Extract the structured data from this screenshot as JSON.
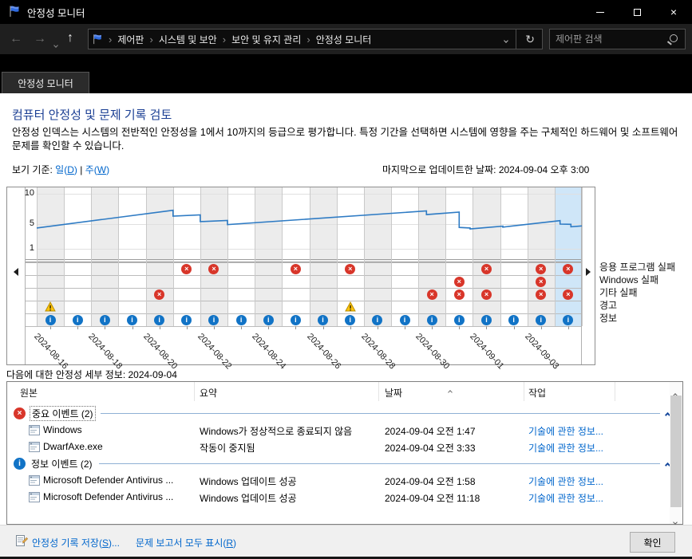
{
  "window": {
    "title": "안정성 모니터"
  },
  "nav": {
    "breadcrumb_items": [
      "제어판",
      "시스템 및 보안",
      "보안 및 유지 관리",
      "안정성 모니터"
    ],
    "search_placeholder": "제어판 검색"
  },
  "tab": {
    "label": "안정성 모니터"
  },
  "page": {
    "heading": "컴퓨터 안정성 및 문제 기록 검토",
    "description": "안정성 인덱스는 시스템의 전반적인 안정성을 1에서 10까지의 등급으로 평가합니다. 특정 기간을 선택하면 시스템에 영향을 주는 구체적인 하드웨어 및 소프트웨어 문제를 확인할 수 있습니다.",
    "view_by": {
      "prefix": "보기 기준: ",
      "day_pre": "일(",
      "day_key": "D",
      "day_post": ")",
      "divider": " | ",
      "week_pre": "주(",
      "week_key": "W",
      "week_post": ")"
    },
    "last_updated": "마지막으로 업데이트한 날짜: 2024-09-04 오후 3:00",
    "detail_label": "다음에 대한 안정성 세부 정보: 2024-09-04"
  },
  "chart_data": {
    "type": "line",
    "ylabel": "",
    "xlabel": "",
    "ylim": [
      1,
      10
    ],
    "y_ticks": [
      "10",
      "5",
      "1"
    ],
    "days": [
      "2024-08-16",
      "2024-08-17",
      "2024-08-18",
      "2024-08-19",
      "2024-08-20",
      "2024-08-21",
      "2024-08-22",
      "2024-08-23",
      "2024-08-24",
      "2024-08-25",
      "2024-08-26",
      "2024-08-27",
      "2024-08-28",
      "2024-08-29",
      "2024-08-30",
      "2024-08-31",
      "2024-09-01",
      "2024-09-02",
      "2024-09-03",
      "2024-09-04"
    ],
    "x_labels": [
      "2024-08-16",
      "2024-08-18",
      "2024-08-20",
      "2024-08-22",
      "2024-08-24",
      "2024-08-26",
      "2024-08-28",
      "2024-08-30",
      "2024-09-01",
      "2024-09-03"
    ],
    "selected_day_index": 19,
    "stability_index_line": [
      [
        0,
        4.4
      ],
      [
        5,
        7.3
      ],
      [
        5,
        6.35
      ],
      [
        6,
        6.55
      ],
      [
        6,
        5.45
      ],
      [
        7,
        5.65
      ],
      [
        7,
        4.95
      ],
      [
        14.3,
        7.2
      ],
      [
        14.3,
        6.6
      ],
      [
        15.5,
        7.0
      ],
      [
        15.5,
        4.5
      ],
      [
        15.9,
        4.4
      ],
      [
        15.9,
        4.25
      ],
      [
        17.1,
        4.7
      ],
      [
        17.1,
        4.55
      ],
      [
        19.2,
        5.6
      ],
      [
        19.2,
        5.05
      ],
      [
        19.6,
        5.0
      ],
      [
        19.6,
        4.6
      ],
      [
        20,
        4.75
      ]
    ],
    "rows": [
      {
        "label": "응용 프로그램 실패",
        "type": "error",
        "day_indexes": [
          5,
          6,
          9,
          11,
          16,
          18,
          19
        ]
      },
      {
        "label": "Windows 실패",
        "type": "error",
        "day_indexes": [
          15,
          18
        ]
      },
      {
        "label": "기타 실패",
        "type": "error",
        "day_indexes": [
          4,
          14,
          15,
          16,
          18,
          19
        ]
      },
      {
        "label": "경고",
        "type": "warning",
        "day_indexes": [
          0,
          11
        ]
      },
      {
        "label": "정보",
        "type": "info",
        "day_indexes": [
          0,
          1,
          2,
          3,
          4,
          5,
          6,
          7,
          8,
          9,
          10,
          11,
          12,
          13,
          14,
          15,
          16,
          17,
          18,
          19
        ]
      }
    ]
  },
  "table": {
    "headers": [
      "원본",
      "요약",
      "날짜",
      "작업"
    ],
    "sorted_column": "날짜",
    "groups": [
      {
        "icon": "error",
        "label": "중요 이벤트 (2)",
        "focused": true,
        "rows": [
          {
            "source": "Windows",
            "summary": "Windows가 정상적으로 종료되지 않음",
            "date": "2024-09-04 오전 1:47",
            "action": "기술에 관한 정보..."
          },
          {
            "source": "DwarfAxe.exe",
            "summary": "작동이 중지됨",
            "date": "2024-09-04 오전 3:33",
            "action": "기술에 관한 정보..."
          }
        ]
      },
      {
        "icon": "info",
        "label": "정보 이벤트 (2)",
        "focused": false,
        "rows": [
          {
            "source": "Microsoft Defender Antivirus ...",
            "summary": "Windows 업데이트 성공",
            "date": "2024-09-04 오전 1:58",
            "action": "기술에 관한 정보..."
          },
          {
            "source": "Microsoft Defender Antivirus ...",
            "summary": "Windows 업데이트 성공",
            "date": "2024-09-04 오전 11:18",
            "action": "기술에 관한 정보..."
          }
        ]
      }
    ]
  },
  "footer": {
    "save_pre": "안정성 기록 저장(",
    "save_key": "S",
    "save_post": ")...",
    "show_pre": "문제 보고서 모두 표시(",
    "show_key": "R",
    "show_post": ")",
    "ok": "확인"
  },
  "icons": {
    "error_glyph": "×",
    "info_glyph": "i",
    "warning_glyph": "!"
  },
  "colors": {
    "link": "#0066cc",
    "heading": "#1a3e93",
    "selected_column": "#cfe6f8",
    "line": "#2e7bc4",
    "error": "#d8362a",
    "warning": "#fdc40d",
    "info": "#1173c6"
  }
}
